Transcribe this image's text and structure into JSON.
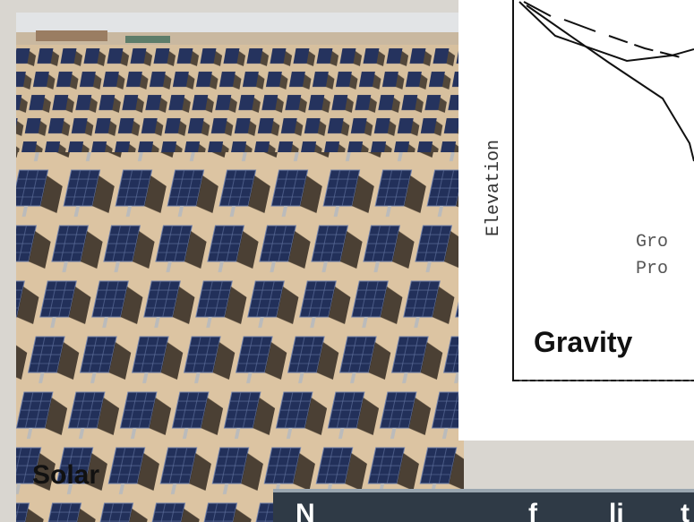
{
  "photo_label": "Solar",
  "graph": {
    "axis_label": "Elevation",
    "annotation_lines": [
      "Gro",
      "Pro"
    ],
    "label": "Gravity"
  },
  "banner": {
    "text_fragments": [
      "N",
      "f",
      "li",
      "t"
    ]
  }
}
